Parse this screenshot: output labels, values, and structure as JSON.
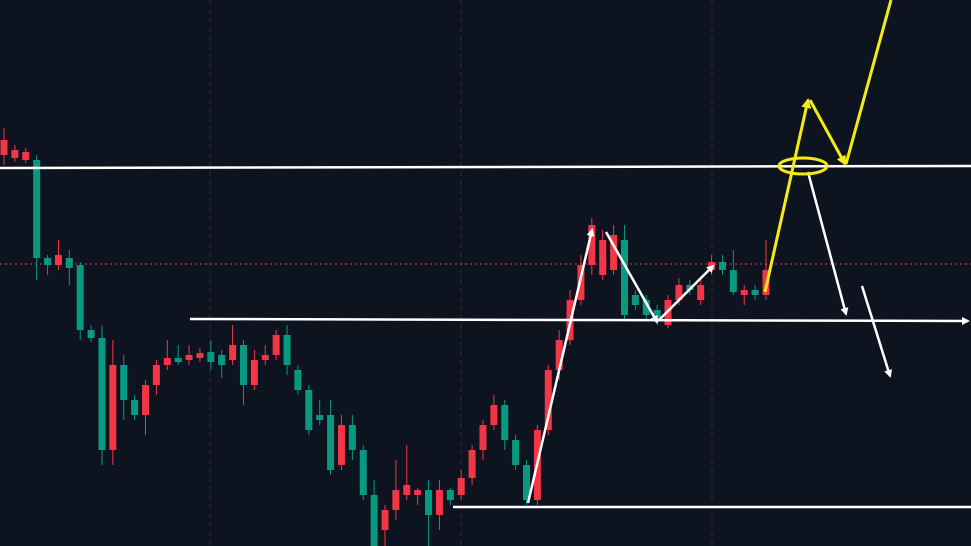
{
  "chart_data": {
    "type": "candlestick",
    "categories": [
      null,
      null,
      null,
      null,
      null,
      null,
      null,
      null,
      null,
      null,
      null,
      null,
      null,
      null,
      null,
      null,
      null,
      null,
      null,
      null,
      null,
      null,
      null,
      null,
      null,
      null,
      null,
      null,
      null,
      null,
      null,
      null,
      null,
      null,
      null,
      null,
      null,
      null,
      null,
      null,
      null,
      null,
      null,
      null,
      null,
      null,
      null,
      null,
      null,
      null,
      null,
      null,
      null,
      null,
      null,
      null,
      null,
      null,
      null,
      null,
      null,
      null,
      null,
      null,
      null,
      null,
      null,
      null,
      null,
      null,
      null
    ],
    "open": [
      391,
      388,
      386,
      386,
      288,
      281,
      288,
      281,
      216,
      208,
      96,
      181,
      146,
      131,
      161,
      181,
      188,
      186,
      188,
      194,
      191,
      186,
      201,
      161,
      186,
      191,
      211,
      176,
      156,
      131,
      131,
      81,
      121,
      96,
      51,
      16,
      36,
      51,
      51,
      56,
      31,
      56,
      51,
      68,
      96,
      121,
      141,
      106,
      81,
      46,
      116,
      176,
      206,
      246,
      281,
      271,
      276,
      306,
      251,
      246,
      236,
      221,
      246,
      261,
      246,
      276,
      284,
      276,
      251,
      256,
      251
    ],
    "high": [
      418,
      401,
      398,
      391,
      291,
      306,
      296,
      284,
      221,
      221,
      206,
      191,
      151,
      166,
      186,
      206,
      201,
      201,
      198,
      206,
      196,
      221,
      206,
      196,
      201,
      216,
      221,
      181,
      161,
      146,
      146,
      131,
      131,
      101,
      66,
      41,
      86,
      101,
      58,
      66,
      66,
      58,
      76,
      101,
      126,
      151,
      146,
      111,
      86,
      121,
      181,
      216,
      256,
      291,
      328,
      316,
      321,
      321,
      256,
      251,
      241,
      251,
      268,
      266,
      266,
      291,
      291,
      296,
      261,
      261,
      306
    ],
    "low": [
      381,
      384,
      383,
      266,
      271,
      276,
      261,
      206,
      204,
      81,
      81,
      126,
      126,
      111,
      151,
      176,
      181,
      181,
      184,
      176,
      168,
      181,
      141,
      156,
      181,
      186,
      171,
      151,
      111,
      121,
      71,
      76,
      86,
      46,
      0,
      0,
      26,
      46,
      41,
      0,
      16,
      41,
      46,
      61,
      86,
      116,
      96,
      76,
      41,
      41,
      111,
      166,
      201,
      241,
      271,
      266,
      271,
      226,
      236,
      226,
      221,
      218,
      241,
      251,
      241,
      271,
      271,
      251,
      241,
      246,
      246
    ],
    "close": [
      406,
      396,
      394,
      288,
      281,
      291,
      278,
      216,
      208,
      96,
      181,
      146,
      131,
      161,
      181,
      188,
      184,
      191,
      193,
      184,
      181,
      201,
      161,
      186,
      191,
      211,
      181,
      156,
      116,
      126,
      76,
      121,
      96,
      51,
      0,
      36,
      56,
      61,
      56,
      31,
      56,
      46,
      68,
      96,
      121,
      141,
      106,
      81,
      46,
      116,
      176,
      206,
      246,
      281,
      321,
      306,
      311,
      231,
      241,
      231,
      226,
      246,
      261,
      256,
      261,
      284,
      276,
      254,
      256,
      251,
      276
    ],
    "up_color": "#f23645",
    "down_color": "#089981",
    "ylim": [
      0,
      546
    ]
  }
}
